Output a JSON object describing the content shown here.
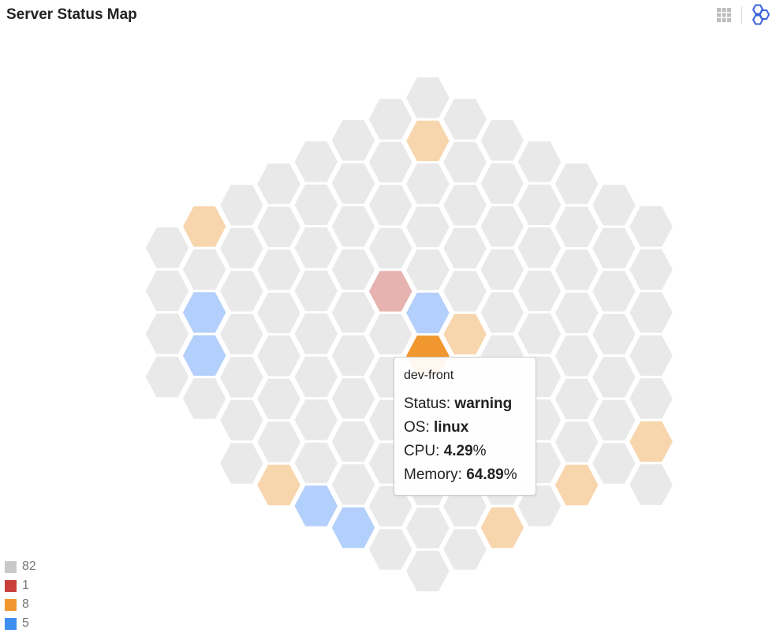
{
  "title": "Server Status Map",
  "toolbar": {
    "icons": [
      "grid-icon",
      "hexagon-icon"
    ]
  },
  "colors": {
    "ok": "#e9e9e9",
    "critical": "#e6b3b0",
    "warning": "#f8d6ad",
    "info": "#b3cffb",
    "highlight": "#f0982f"
  },
  "legend": [
    {
      "label": "82",
      "color": "#c9c9c9"
    },
    {
      "label": "1",
      "color": "#c9403a"
    },
    {
      "label": "8",
      "color": "#f0982f"
    },
    {
      "label": "5",
      "color": "#3f8ef0"
    }
  ],
  "tooltip": {
    "name": "dev-front",
    "status_label": "Status: ",
    "status_value": "warning",
    "os_label": "OS: ",
    "os_value": "linux",
    "cpu_label": "CPU: ",
    "cpu_value": "4.29",
    "cpu_unit": "%",
    "memory_label": "Memory: ",
    "memory_value": "64.89",
    "memory_unit": "%"
  },
  "chart_data": {
    "type": "heatmap",
    "layout": "hexagonal-grid",
    "counts": {
      "ok": 82,
      "critical": 1,
      "warning": 8,
      "info": 5
    },
    "columns": [
      {
        "status": [
          "ok",
          "ok",
          "ok",
          "ok"
        ]
      },
      {
        "status": [
          "warning",
          "ok",
          "info",
          "info",
          "ok"
        ]
      },
      {
        "status": [
          "ok",
          "ok",
          "ok",
          "ok",
          "ok",
          "ok",
          "ok"
        ]
      },
      {
        "status": [
          "ok",
          "ok",
          "ok",
          "ok",
          "ok",
          "ok",
          "ok",
          "warning"
        ]
      },
      {
        "status": [
          "ok",
          "ok",
          "ok",
          "ok",
          "ok",
          "ok",
          "ok",
          "ok",
          "info"
        ]
      },
      {
        "status": [
          "ok",
          "ok",
          "ok",
          "ok",
          "ok",
          "ok",
          "ok",
          "ok",
          "ok",
          "info"
        ]
      },
      {
        "status": [
          "ok",
          "ok",
          "ok",
          "ok",
          "critical",
          "ok",
          "ok",
          "ok",
          "ok",
          "ok",
          "ok"
        ]
      },
      {
        "status": [
          "ok",
          "warning",
          "ok",
          "ok",
          "ok",
          "info",
          "highlight",
          "ok",
          "ok",
          "ok",
          "ok",
          "ok"
        ]
      },
      {
        "status": [
          "ok",
          "ok",
          "ok",
          "ok",
          "ok",
          "warning",
          "ok",
          "ok",
          "ok",
          "ok",
          "ok"
        ]
      },
      {
        "status": [
          "ok",
          "ok",
          "ok",
          "ok",
          "ok",
          "ok",
          "ok",
          "ok",
          "ok",
          "warning"
        ]
      },
      {
        "status": [
          "ok",
          "ok",
          "ok",
          "ok",
          "ok",
          "ok",
          "ok",
          "ok",
          "ok"
        ]
      },
      {
        "status": [
          "ok",
          "ok",
          "ok",
          "ok",
          "ok",
          "ok",
          "ok",
          "warning"
        ]
      },
      {
        "status": [
          "ok",
          "ok",
          "ok",
          "ok",
          "ok",
          "ok",
          "ok"
        ]
      },
      {
        "status": [
          "ok",
          "ok",
          "ok",
          "ok",
          "ok",
          "warning",
          "ok"
        ]
      }
    ]
  }
}
